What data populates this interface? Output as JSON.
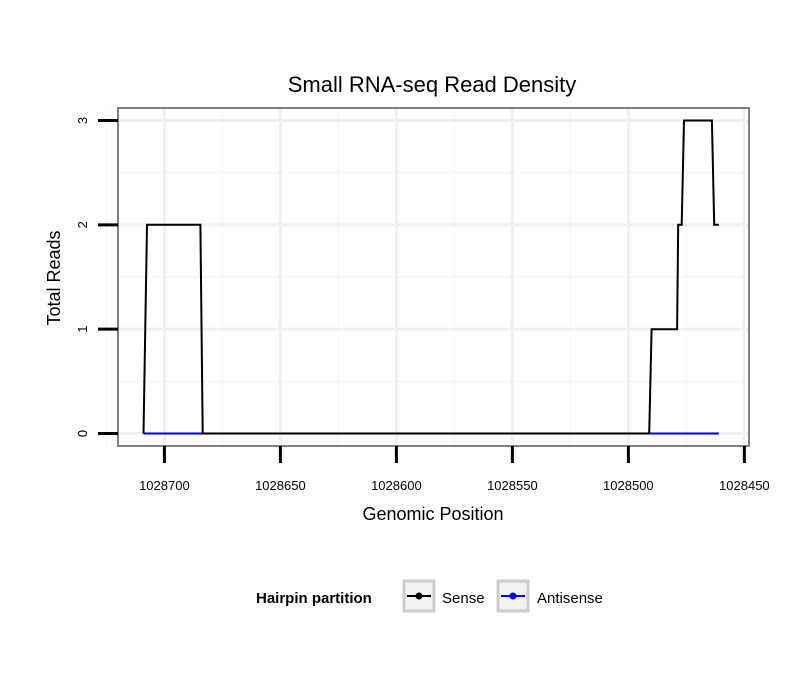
{
  "chart_data": {
    "type": "line",
    "title": "Small RNA-seq Read Density",
    "xlabel": "Genomic Position",
    "ylabel": "Total Reads",
    "xlim": [
      1028720,
      1028448
    ],
    "ylim": [
      -0.12,
      3.12
    ],
    "x_ticks": [
      1028700,
      1028650,
      1028600,
      1028550,
      1028500,
      1028450
    ],
    "x_tick_labels": [
      "1028700",
      "1028650",
      "1028600",
      "1028550",
      "1028500",
      "1028450"
    ],
    "y_ticks": [
      0,
      1,
      2,
      3
    ],
    "y_tick_labels": [
      "0",
      "1",
      "2",
      "3"
    ],
    "x_reversed": true,
    "grid": true,
    "legend": {
      "title": "Hairpin partition",
      "position": "bottom",
      "entries": [
        {
          "label": "Sense",
          "color": "#000000"
        },
        {
          "label": "Antisense",
          "color": "#0000ff"
        }
      ]
    },
    "series": [
      {
        "name": "Sense",
        "color": "#000000",
        "x": [
          1028709,
          1028707.5,
          1028684.5,
          1028683.5,
          1028491,
          1028490,
          1028479,
          1028478.5,
          1028477,
          1028476,
          1028464,
          1028463,
          1028461
        ],
        "y": [
          0,
          2,
          2,
          0,
          0,
          1,
          1,
          2,
          2,
          3,
          3,
          2,
          2
        ]
      },
      {
        "name": "Antisense",
        "color": "#0000ff",
        "x": [
          1028709,
          1028461
        ],
        "y": [
          0,
          0
        ]
      }
    ]
  }
}
